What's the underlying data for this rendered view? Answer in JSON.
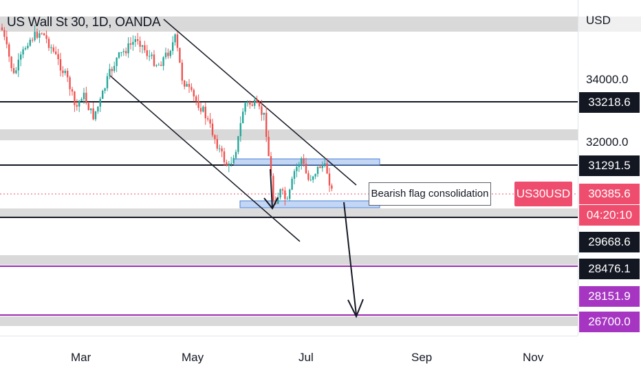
{
  "window": {
    "title": "US Wall St 30, 1D, OANDA"
  },
  "price_axis": {
    "currency": "USD",
    "ticks": [
      "34000.0",
      "32000.0"
    ],
    "tagged_levels": [
      {
        "label": "33218.6",
        "color": "#131722"
      },
      {
        "label": "31291.5",
        "color": "#131722"
      },
      {
        "label": "30385.6",
        "color": "#ef4d6e"
      },
      {
        "label": "04:20:10",
        "color": "#ef4d6e"
      },
      {
        "label": "29668.6",
        "color": "#131722"
      },
      {
        "label": "28476.1",
        "color": "#131722"
      },
      {
        "label": "28151.9",
        "color": "#9c27b0"
      },
      {
        "label": "26700.0",
        "color": "#9c27b0"
      }
    ]
  },
  "symbol_badge": "US30USD",
  "annotation": "Bearish flag consolidation",
  "time_axis": {
    "months": [
      "Mar",
      "May",
      "Jul",
      "Sep",
      "Nov"
    ]
  },
  "colors": {
    "up": "#26a69a",
    "down": "#ef5350",
    "channel": "#131722",
    "zone": "#4a7fd4",
    "purple": "#9c27b0",
    "current_price": "#ef4d6e"
  },
  "chart_data": {
    "type": "candlestick",
    "title": "US Wall St 30, 1D, OANDA",
    "currency": "USD",
    "last_price": 30385.6,
    "countdown": "04:20:10",
    "levels": [
      33218.6,
      31291.5,
      29668.6,
      28476.1,
      28151.9,
      26700.0
    ],
    "x_ticks": [
      "Mar",
      "May",
      "Jul",
      "Sep",
      "Nov"
    ],
    "y_ticks": [
      34000.0,
      32000.0
    ],
    "annotation": "Bearish flag consolidation"
  }
}
